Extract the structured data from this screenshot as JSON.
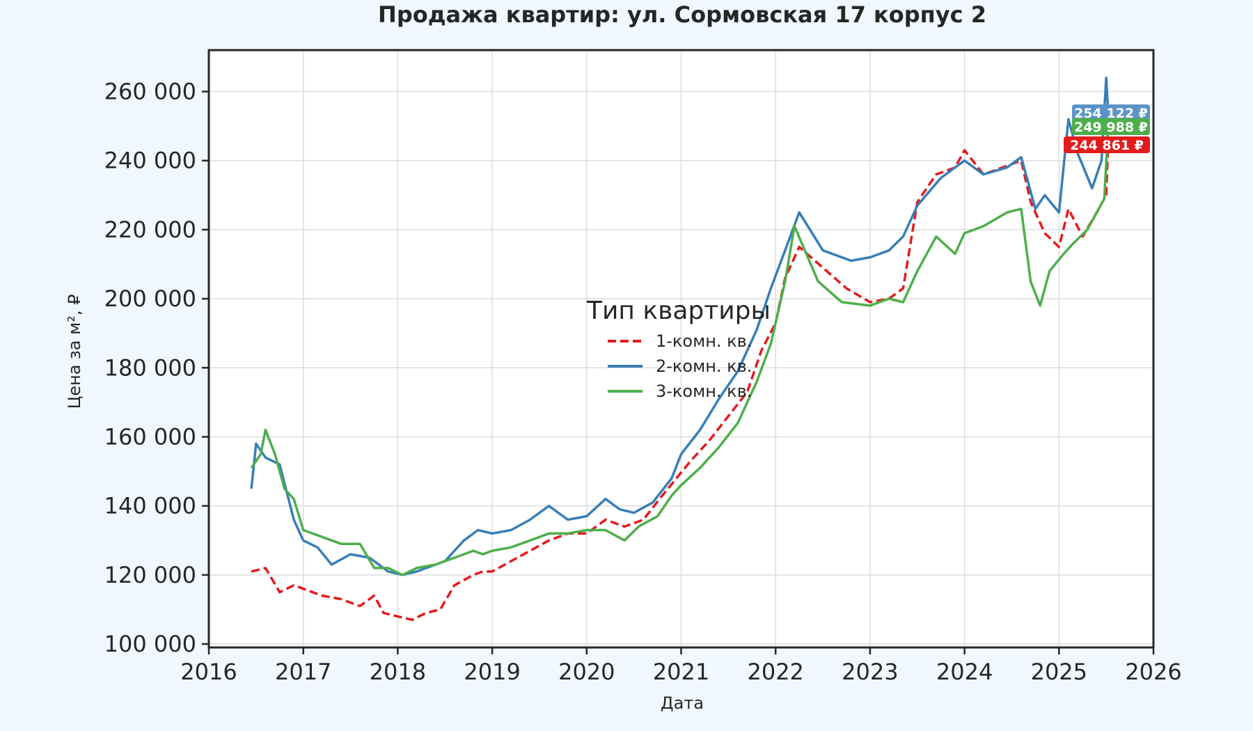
{
  "chart_data": {
    "type": "line",
    "title": "Продажа квартир: ул. Сормовская 17 корпус 2",
    "xlabel": "Дата",
    "ylabel": "Цена за м², ₽",
    "xlim": [
      2016.0,
      2026.0
    ],
    "ylim": [
      99000,
      272000
    ],
    "x_ticks": [
      "2016",
      "2017",
      "2018",
      "2019",
      "2020",
      "2021",
      "2022",
      "2023",
      "2024",
      "2025",
      "2026"
    ],
    "y_ticks": [
      "100 000",
      "120 000",
      "140 000",
      "160 000",
      "180 000",
      "200 000",
      "220 000",
      "240 000",
      "260 000"
    ],
    "grid": true,
    "legend": {
      "title": "Тип квартиры",
      "placement": "center"
    },
    "series": [
      {
        "name": "1-комн. кв.",
        "color": "#e41a1c",
        "dash": "dashed",
        "x": [
          2016.45,
          2016.6,
          2016.75,
          2016.9,
          2017.0,
          2017.2,
          2017.4,
          2017.6,
          2017.75,
          2017.85,
          2018.0,
          2018.15,
          2018.3,
          2018.45,
          2018.6,
          2018.8,
          2018.9,
          2019.0,
          2019.2,
          2019.4,
          2019.6,
          2019.8,
          2020.0,
          2020.2,
          2020.4,
          2020.6,
          2020.8,
          2020.95,
          2021.1,
          2021.3,
          2021.5,
          2021.7,
          2021.85,
          2022.0,
          2022.1,
          2022.25,
          2022.5,
          2022.75,
          2023.0,
          2023.2,
          2023.35,
          2023.5,
          2023.7,
          2023.9,
          2024.0,
          2024.2,
          2024.4,
          2024.6,
          2024.7,
          2024.85,
          2025.0,
          2025.1,
          2025.25,
          2025.4,
          2025.5,
          2025.52
        ],
        "values": [
          121000,
          122000,
          115000,
          117000,
          116000,
          114000,
          113000,
          111000,
          114000,
          109000,
          108000,
          107000,
          109000,
          110000,
          117000,
          120000,
          121000,
          121000,
          124000,
          127000,
          130000,
          132000,
          132000,
          136000,
          134000,
          136000,
          143000,
          148000,
          153000,
          159000,
          166000,
          173000,
          185000,
          193000,
          206000,
          215000,
          209000,
          203000,
          199000,
          200000,
          203000,
          228000,
          236000,
          238000,
          243000,
          236000,
          238000,
          240000,
          228000,
          219000,
          215000,
          226000,
          218000,
          225000,
          230000,
          244861
        ]
      },
      {
        "name": "2-комн. кв.",
        "color": "#377eb8",
        "dash": "solid",
        "x": [
          2016.45,
          2016.5,
          2016.6,
          2016.75,
          2016.9,
          2017.0,
          2017.15,
          2017.3,
          2017.5,
          2017.7,
          2017.9,
          2018.05,
          2018.2,
          2018.5,
          2018.7,
          2018.85,
          2019.0,
          2019.2,
          2019.4,
          2019.6,
          2019.8,
          2020.0,
          2020.2,
          2020.35,
          2020.5,
          2020.7,
          2020.9,
          2021.0,
          2021.2,
          2021.4,
          2021.6,
          2021.8,
          2021.95,
          2022.1,
          2022.25,
          2022.5,
          2022.8,
          2023.0,
          2023.2,
          2023.35,
          2023.5,
          2023.75,
          2023.9,
          2024.0,
          2024.2,
          2024.45,
          2024.6,
          2024.75,
          2024.85,
          2025.0,
          2025.1,
          2025.2,
          2025.35,
          2025.45,
          2025.5,
          2025.52
        ],
        "values": [
          145000,
          158000,
          154000,
          152000,
          136000,
          130000,
          128000,
          123000,
          126000,
          125000,
          121000,
          120000,
          121000,
          124000,
          130000,
          133000,
          132000,
          133000,
          136000,
          140000,
          136000,
          137000,
          142000,
          139000,
          138000,
          141000,
          148000,
          155000,
          162000,
          171000,
          179000,
          191000,
          203000,
          214000,
          225000,
          214000,
          211000,
          212000,
          214000,
          218000,
          227000,
          235000,
          238000,
          240000,
          236000,
          238000,
          241000,
          226000,
          230000,
          225000,
          252000,
          242000,
          232000,
          240000,
          264000,
          254122
        ]
      },
      {
        "name": "3-комн. кв.",
        "color": "#4daf4a",
        "dash": "solid",
        "x": [
          2016.45,
          2016.55,
          2016.6,
          2016.7,
          2016.8,
          2016.9,
          2017.0,
          2017.2,
          2017.4,
          2017.6,
          2017.75,
          2017.9,
          2018.05,
          2018.2,
          2018.4,
          2018.6,
          2018.8,
          2018.9,
          2019.0,
          2019.2,
          2019.4,
          2019.6,
          2019.8,
          2020.0,
          2020.2,
          2020.4,
          2020.55,
          2020.75,
          2020.9,
          2021.0,
          2021.2,
          2021.4,
          2021.6,
          2021.8,
          2021.95,
          2022.1,
          2022.2,
          2022.45,
          2022.7,
          2023.0,
          2023.2,
          2023.35,
          2023.5,
          2023.7,
          2023.9,
          2024.0,
          2024.2,
          2024.45,
          2024.6,
          2024.7,
          2024.8,
          2024.9,
          2025.05,
          2025.15,
          2025.3,
          2025.4,
          2025.48,
          2025.52
        ],
        "values": [
          151000,
          155000,
          162000,
          155000,
          145000,
          142000,
          133000,
          131000,
          129000,
          129000,
          122000,
          122000,
          120000,
          122000,
          123000,
          125000,
          127000,
          126000,
          127000,
          128000,
          130000,
          132000,
          132000,
          133000,
          133000,
          130000,
          134000,
          137000,
          143000,
          146000,
          151000,
          157000,
          164000,
          176000,
          187000,
          205000,
          221000,
          205000,
          199000,
          198000,
          200000,
          199000,
          208000,
          218000,
          213000,
          219000,
          221000,
          225000,
          226000,
          205000,
          198000,
          208000,
          213000,
          216000,
          220000,
          225000,
          229000,
          249988
        ]
      }
    ],
    "end_labels": [
      {
        "text": "254 122 ₽",
        "color": "#5b93c8",
        "value": 254122
      },
      {
        "text": "249 988 ₽",
        "color": "#4daf4a",
        "value": 249988
      },
      {
        "text": "244 861 ₽",
        "color": "#e41a1c",
        "value": 244861
      }
    ]
  }
}
